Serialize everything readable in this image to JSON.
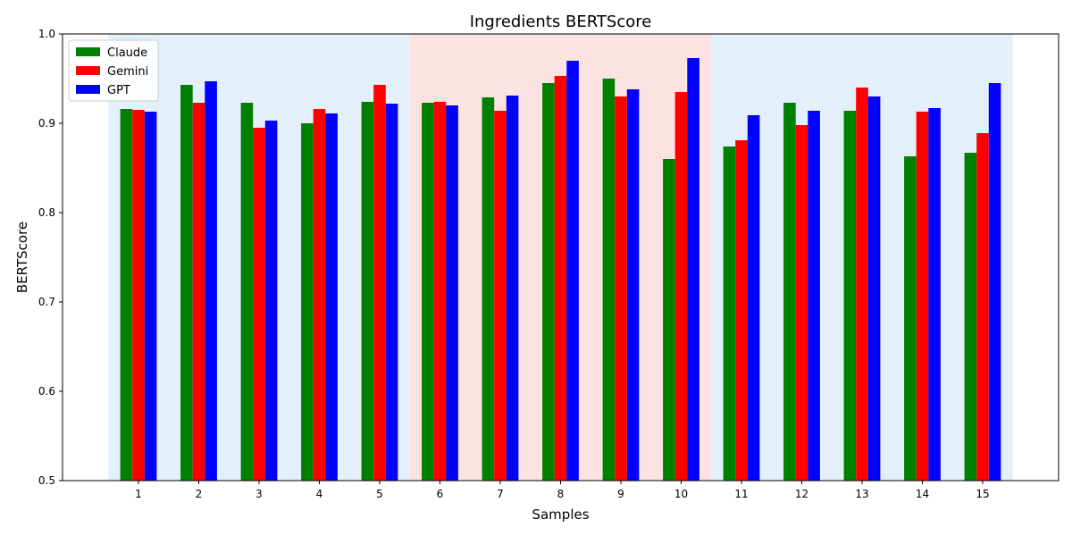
{
  "chart_data": {
    "type": "bar",
    "title": "Ingredients BERTScore",
    "xlabel": "Samples",
    "ylabel": "BERTScore",
    "ylim": [
      0.5,
      1.0
    ],
    "yticks": [
      "0.5",
      "0.6",
      "0.7",
      "0.8",
      "0.9",
      "1.0"
    ],
    "categories": [
      "1",
      "2",
      "3",
      "4",
      "5",
      "6",
      "7",
      "8",
      "9",
      "10",
      "11",
      "12",
      "13",
      "14",
      "15"
    ],
    "series": [
      {
        "name": "Claude",
        "color": "#008000",
        "values": [
          0.916,
          0.943,
          0.923,
          0.9,
          0.924,
          0.923,
          0.929,
          0.945,
          0.95,
          0.86,
          0.874,
          0.923,
          0.914,
          0.863,
          0.867
        ]
      },
      {
        "name": "Gemini",
        "color": "#ff0000",
        "values": [
          0.915,
          0.923,
          0.895,
          0.916,
          0.943,
          0.924,
          0.914,
          0.953,
          0.93,
          0.935,
          0.881,
          0.898,
          0.94,
          0.913,
          0.889
        ]
      },
      {
        "name": "GPT",
        "color": "#0000ff",
        "values": [
          0.913,
          0.947,
          0.903,
          0.911,
          0.922,
          0.92,
          0.931,
          0.97,
          0.938,
          0.973,
          0.909,
          0.914,
          0.93,
          0.917,
          0.945
        ]
      }
    ],
    "background_bands": [
      {
        "from_sample": "1",
        "to_sample": "5",
        "color": "#e3f0fc"
      },
      {
        "from_sample": "6",
        "to_sample": "10",
        "color": "#fde2e2"
      },
      {
        "from_sample": "11",
        "to_sample": "15",
        "color": "#e3f0fc"
      }
    ],
    "legend_position": "upper-left",
    "grid": false
  }
}
